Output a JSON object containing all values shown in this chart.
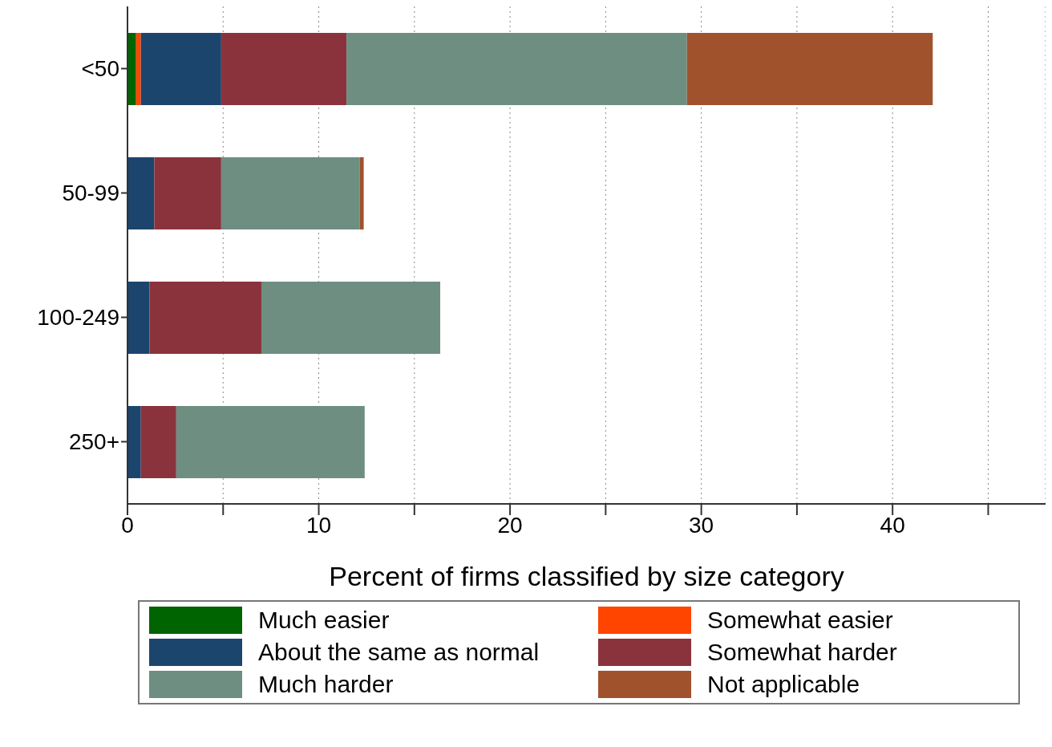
{
  "chart_data": {
    "type": "bar",
    "orientation": "horizontal",
    "stacked": true,
    "xlabel": "Percent of firms classified by size category",
    "categories": [
      "<50",
      "50-99",
      "100-249",
      "250+"
    ],
    "series": [
      {
        "name": "Much easier",
        "color": "#006400",
        "values": [
          0.45,
          0,
          0,
          0
        ]
      },
      {
        "name": "Somewhat easier",
        "color": "#ff4500",
        "values": [
          0.25,
          0,
          0,
          0
        ]
      },
      {
        "name": "About the same as normal",
        "color": "#1c456e",
        "values": [
          4.2,
          1.4,
          1.15,
          0.7
        ]
      },
      {
        "name": "Somewhat harder",
        "color": "#8b333c",
        "values": [
          6.55,
          3.5,
          5.85,
          1.85
        ]
      },
      {
        "name": "Much harder",
        "color": "#6e8e82",
        "values": [
          17.8,
          7.25,
          9.35,
          9.85
        ]
      },
      {
        "name": "Not applicable",
        "color": "#a0522d",
        "values": [
          12.85,
          0.2,
          0,
          0
        ]
      }
    ],
    "xlim": [
      0,
      48
    ],
    "xticks": [
      0,
      {
        "value": 5,
        "label": null
      },
      10,
      {
        "value": 15,
        "label": null
      },
      20,
      {
        "value": 25,
        "label": null
      },
      30,
      {
        "value": 35,
        "label": null
      },
      40,
      {
        "value": 45,
        "label": null
      }
    ],
    "grid": "x",
    "legend": "bottom"
  }
}
